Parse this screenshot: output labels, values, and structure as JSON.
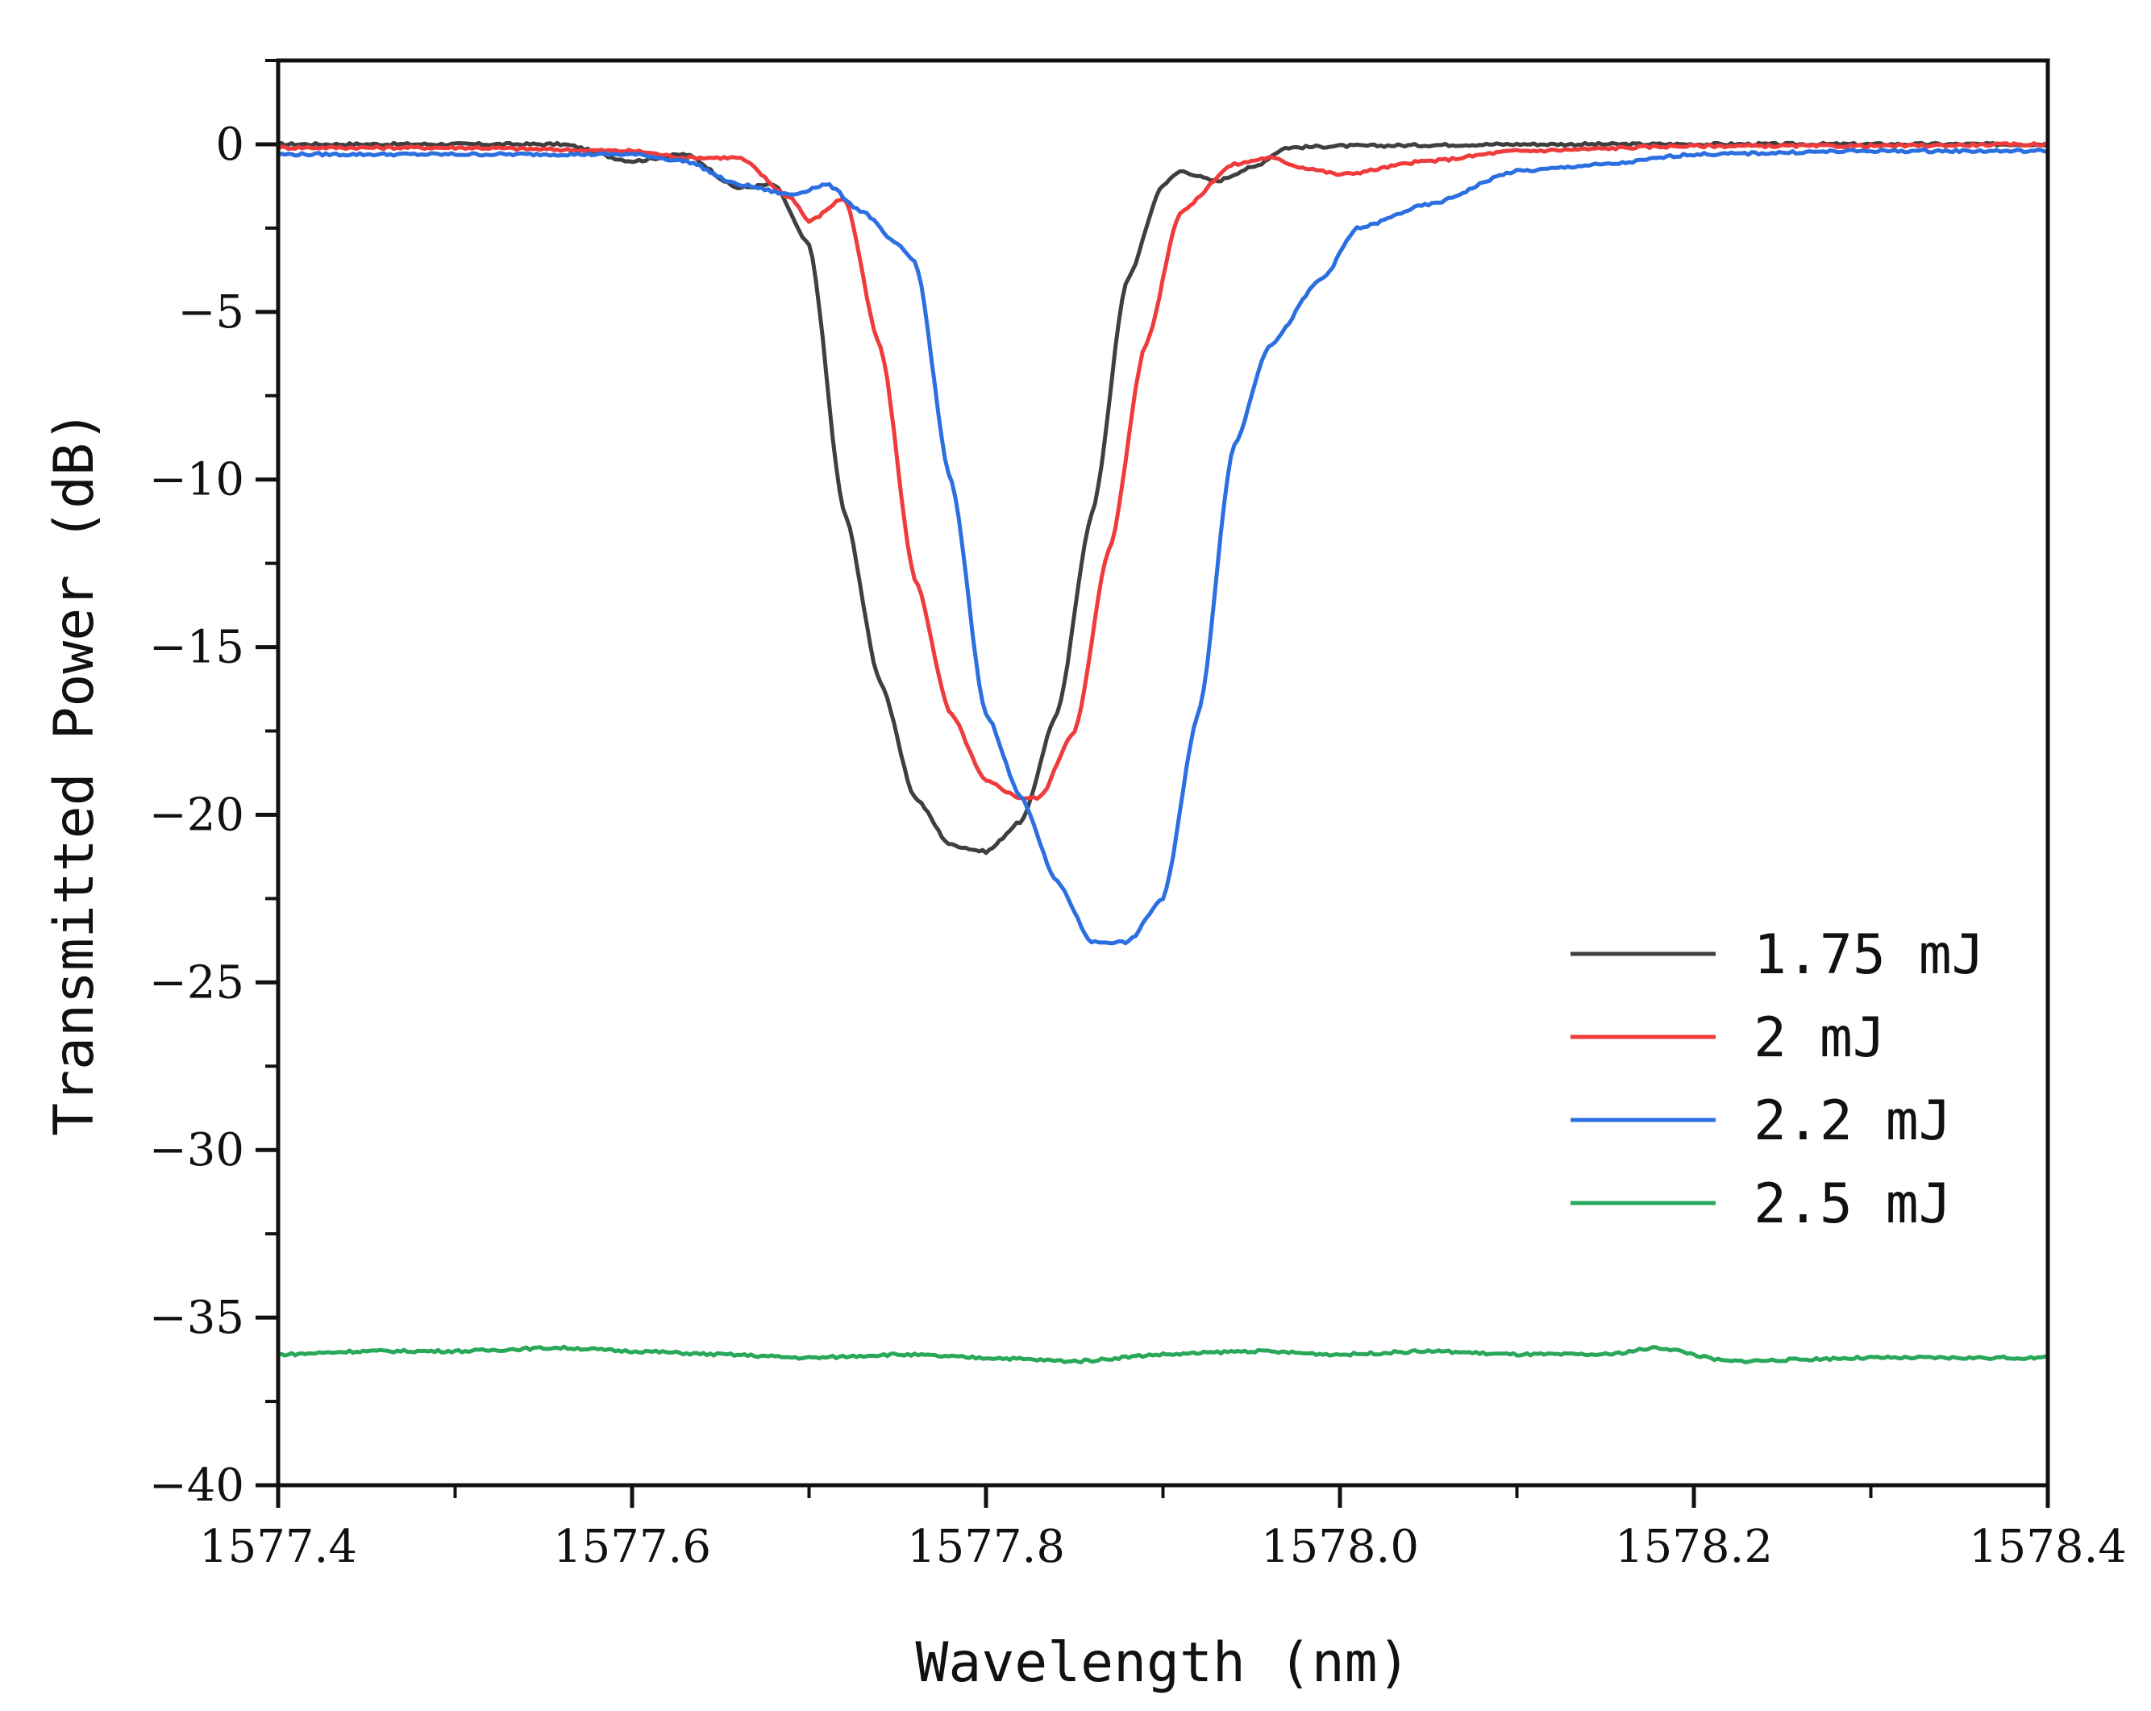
{
  "chart_data": {
    "type": "line",
    "title": "",
    "xlabel": "Wavelength (nm)",
    "ylabel": "Transmitted Power (dB)",
    "xlim": [
      1577.4,
      1578.4
    ],
    "ylim": [
      -40,
      2.5
    ],
    "x_ticks": [
      1577.4,
      1577.6,
      1577.8,
      1578.0,
      1578.2,
      1578.4
    ],
    "x_tick_labels": [
      "1577.4",
      "1577.6",
      "1577.8",
      "1578.0",
      "1578.2",
      "1578.4"
    ],
    "y_ticks": [
      0,
      -5,
      -10,
      -15,
      -20,
      -25,
      -30,
      -35,
      -40
    ],
    "y_tick_labels": [
      "0",
      "−5",
      "−10",
      "−15",
      "−20",
      "−25",
      "−30",
      "−35",
      "−40"
    ],
    "grid": false,
    "legend_position": "lower-right",
    "series": [
      {
        "name": "1.75 mJ",
        "color": "#3f3f3f",
        "points": [
          [
            1577.4,
            0
          ],
          [
            1577.45,
            0
          ],
          [
            1577.5,
            0
          ],
          [
            1577.56,
            0
          ],
          [
            1577.6,
            -0.5
          ],
          [
            1577.63,
            -0.3
          ],
          [
            1577.66,
            -1.3
          ],
          [
            1577.68,
            -1.2
          ],
          [
            1577.7,
            -3
          ],
          [
            1577.72,
            -11
          ],
          [
            1577.74,
            -16
          ],
          [
            1577.76,
            -19.5
          ],
          [
            1577.78,
            -20.9
          ],
          [
            1577.8,
            -21.1
          ],
          [
            1577.82,
            -20.2
          ],
          [
            1577.84,
            -17
          ],
          [
            1577.86,
            -11
          ],
          [
            1577.88,
            -4
          ],
          [
            1577.9,
            -1.2
          ],
          [
            1577.91,
            -0.8
          ],
          [
            1577.93,
            -1.1
          ],
          [
            1577.95,
            -0.7
          ],
          [
            1577.97,
            -0.1
          ],
          [
            1578.0,
            -0.05
          ],
          [
            1578.1,
            0
          ],
          [
            1578.2,
            0
          ],
          [
            1578.3,
            0
          ],
          [
            1578.4,
            0
          ]
        ]
      },
      {
        "name": "2 mJ",
        "color": "#ef3b3b",
        "points": [
          [
            1577.4,
            -0.1
          ],
          [
            1577.5,
            -0.1
          ],
          [
            1577.6,
            -0.2
          ],
          [
            1577.63,
            -0.4
          ],
          [
            1577.66,
            -0.4
          ],
          [
            1577.69,
            -1.6
          ],
          [
            1577.7,
            -2.3
          ],
          [
            1577.72,
            -1.6
          ],
          [
            1577.74,
            -6
          ],
          [
            1577.76,
            -13
          ],
          [
            1577.78,
            -17
          ],
          [
            1577.8,
            -19
          ],
          [
            1577.82,
            -19.5
          ],
          [
            1577.83,
            -19.5
          ],
          [
            1577.85,
            -17.5
          ],
          [
            1577.87,
            -12
          ],
          [
            1577.89,
            -6
          ],
          [
            1577.91,
            -2
          ],
          [
            1577.94,
            -0.6
          ],
          [
            1577.96,
            -0.4
          ],
          [
            1577.98,
            -0.7
          ],
          [
            1578.0,
            -0.9
          ],
          [
            1578.05,
            -0.5
          ],
          [
            1578.1,
            -0.2
          ],
          [
            1578.2,
            -0.05
          ],
          [
            1578.3,
            -0.05
          ],
          [
            1578.4,
            0
          ]
        ]
      },
      {
        "name": "2.2 mJ",
        "color": "#2b6fe0",
        "points": [
          [
            1577.4,
            -0.3
          ],
          [
            1577.5,
            -0.3
          ],
          [
            1577.6,
            -0.3
          ],
          [
            1577.63,
            -0.5
          ],
          [
            1577.66,
            -1.2
          ],
          [
            1577.69,
            -1.5
          ],
          [
            1577.71,
            -1.2
          ],
          [
            1577.73,
            -2
          ],
          [
            1577.75,
            -3
          ],
          [
            1577.76,
            -3.5
          ],
          [
            1577.78,
            -10
          ],
          [
            1577.8,
            -17
          ],
          [
            1577.82,
            -19.5
          ],
          [
            1577.84,
            -22
          ],
          [
            1577.86,
            -23.8
          ],
          [
            1577.88,
            -23.8
          ],
          [
            1577.9,
            -22.5
          ],
          [
            1577.92,
            -17
          ],
          [
            1577.94,
            -9
          ],
          [
            1577.96,
            -6
          ],
          [
            1577.99,
            -4
          ],
          [
            1578.01,
            -2.5
          ],
          [
            1578.05,
            -1.8
          ],
          [
            1578.1,
            -0.8
          ],
          [
            1578.15,
            -0.6
          ],
          [
            1578.2,
            -0.3
          ],
          [
            1578.3,
            -0.2
          ],
          [
            1578.4,
            -0.2
          ]
        ]
      },
      {
        "name": "2.5 mJ",
        "color": "#2aa85a",
        "points": [
          [
            1577.4,
            -36.1
          ],
          [
            1577.45,
            -36
          ],
          [
            1577.5,
            -36
          ],
          [
            1577.56,
            -35.9
          ],
          [
            1577.6,
            -36
          ],
          [
            1577.65,
            -36.1
          ],
          [
            1577.7,
            -36.2
          ],
          [
            1577.75,
            -36.1
          ],
          [
            1577.8,
            -36.2
          ],
          [
            1577.85,
            -36.3
          ],
          [
            1577.9,
            -36.1
          ],
          [
            1577.95,
            -36
          ],
          [
            1578.0,
            -36.1
          ],
          [
            1578.05,
            -36
          ],
          [
            1578.1,
            -36.1
          ],
          [
            1578.15,
            -36.1
          ],
          [
            1578.18,
            -35.9
          ],
          [
            1578.22,
            -36.3
          ],
          [
            1578.3,
            -36.2
          ],
          [
            1578.35,
            -36.2
          ],
          [
            1578.4,
            -36.2
          ]
        ]
      }
    ]
  }
}
